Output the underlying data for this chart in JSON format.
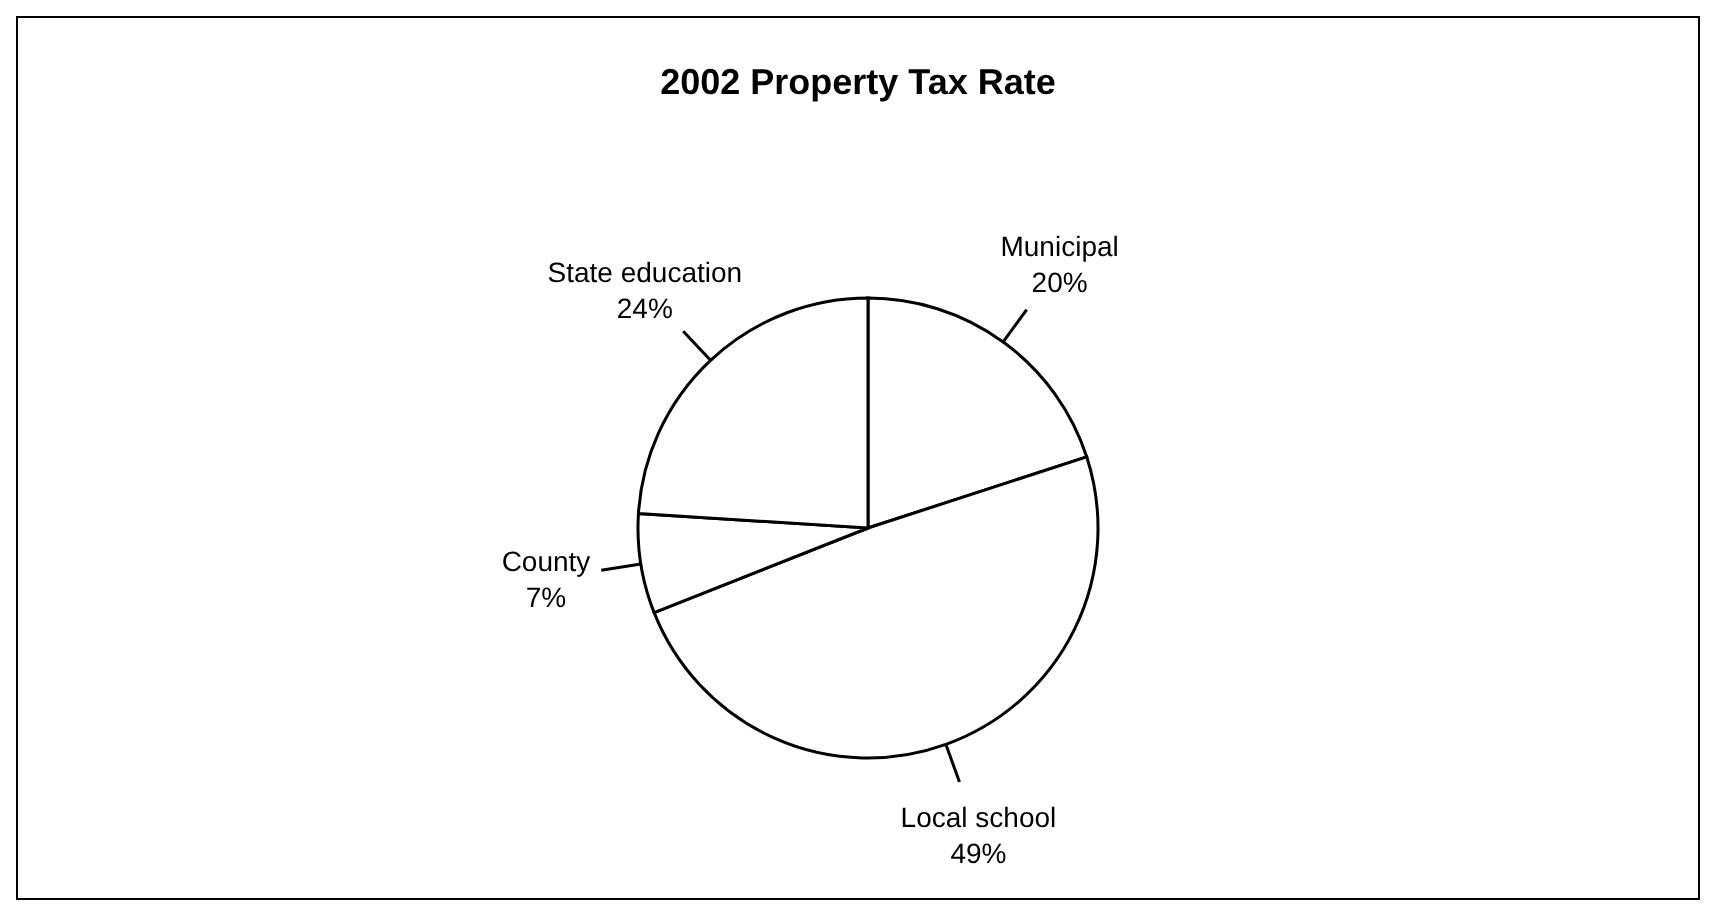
{
  "chart_data": {
    "type": "pie",
    "title": "2002 Property Tax Rate",
    "categories": [
      "Municipal",
      "Local school",
      "County",
      "State education"
    ],
    "values": [
      20,
      49,
      7,
      24
    ],
    "value_labels": [
      "20%",
      "49%",
      "7%",
      "24%"
    ],
    "colors": [
      "#ffffff",
      "#ffffff",
      "#ffffff",
      "#ffffff"
    ]
  }
}
